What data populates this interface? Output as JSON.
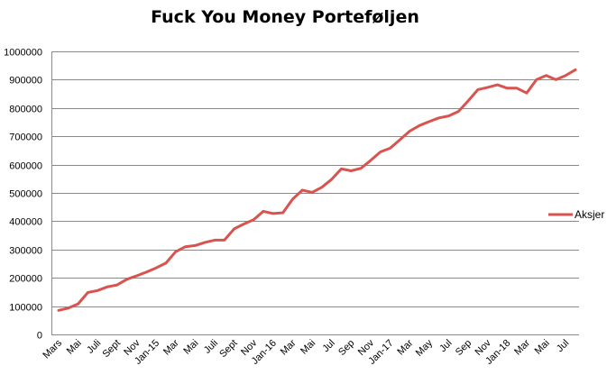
{
  "chart_data": {
    "type": "line",
    "title": "Fuck You Money Porteføljen",
    "xlabel": "",
    "ylabel": "",
    "ylim": [
      0,
      1000000
    ],
    "yticks": [
      0,
      100000,
      200000,
      300000,
      400000,
      500000,
      600000,
      700000,
      800000,
      900000,
      1000000
    ],
    "grid": true,
    "legend_position": "right",
    "x_tick_labels": [
      "Mars",
      "Mai",
      "Juli",
      "Sept",
      "Nov",
      "Jan-15",
      "Mar",
      "Mai",
      "Juli",
      "Sept",
      "Nov",
      "Jan-16",
      "Mar",
      "Mai",
      "Jul",
      "Sep",
      "Nov",
      "Jan-17",
      "Mar",
      "May",
      "Jul",
      "Sep",
      "Nov",
      "Jan-18",
      "Mar",
      "Mai",
      "Jul"
    ],
    "series": [
      {
        "name": "Aksjer",
        "color": "#d9534f",
        "values": [
          85000,
          93000,
          108000,
          148000,
          155000,
          168000,
          175000,
          195000,
          207000,
          220000,
          235000,
          252000,
          292000,
          310000,
          314000,
          325000,
          333000,
          333000,
          373000,
          390000,
          405000,
          435000,
          427000,
          430000,
          478000,
          510000,
          502000,
          520000,
          548000,
          585000,
          578000,
          587000,
          615000,
          645000,
          658000,
          688000,
          718000,
          738000,
          752000,
          765000,
          772000,
          788000,
          825000,
          865000,
          873000,
          882000,
          870000,
          870000,
          853000,
          900000,
          915000,
          900000,
          915000,
          935000
        ]
      }
    ]
  }
}
